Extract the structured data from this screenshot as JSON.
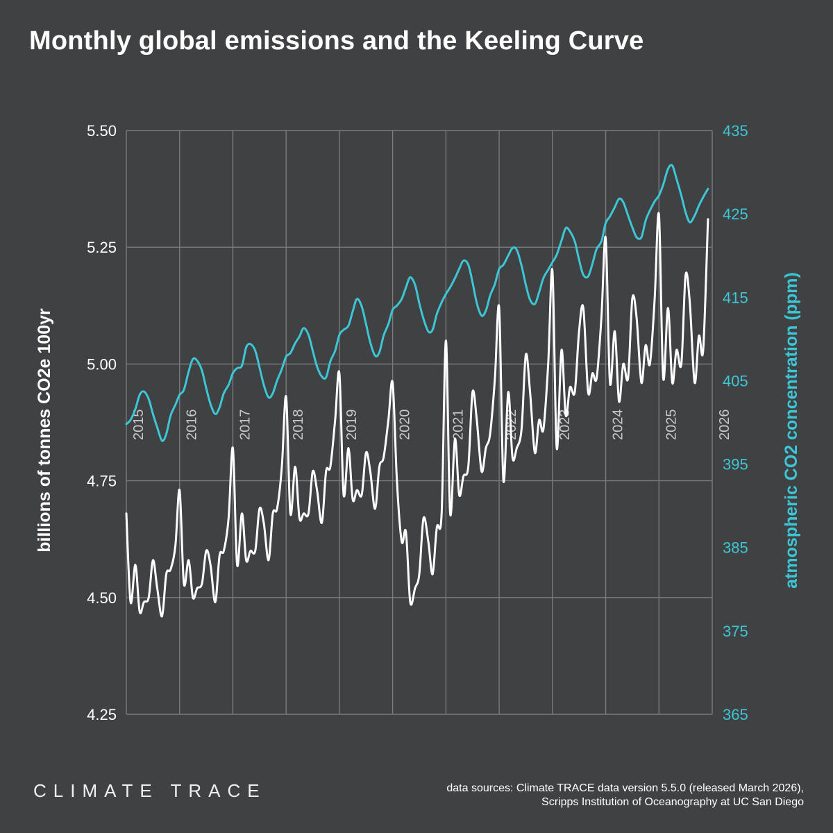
{
  "title": "Monthly global emissions and the Keeling Curve",
  "footer": {
    "logo": "CLIMATE TRACE",
    "source_line1": "data sources: Climate TRACE data version 5.5.0 (released March 2026),",
    "source_line2": "Scripps Institution of Oceanography at UC San Diego"
  },
  "colors": {
    "background": "#404143",
    "emissions": "#ffffff",
    "co2": "#3cc6d6",
    "grid": "#7a7b7d"
  },
  "chart_data": {
    "type": "line",
    "ylabel": "billions of tonnes CO2e 100yr",
    "y2label": "atmospheric CO2 concentration (ppm)",
    "xlim": [
      2015.0,
      2026.0
    ],
    "ylim": [
      4.25,
      5.5
    ],
    "y2lim": [
      365,
      435
    ],
    "yticks": [
      "4.25",
      "4.50",
      "4.75",
      "5.00",
      "5.25",
      "5.50"
    ],
    "y2ticks": [
      "365",
      "375",
      "385",
      "395",
      "405",
      "415",
      "425",
      "435"
    ],
    "xticks": [
      "2015",
      "2016",
      "2017",
      "2018",
      "2019",
      "2020",
      "2021",
      "2022",
      "2023",
      "2024",
      "2025",
      "2026"
    ],
    "grid": true,
    "series": [
      {
        "name": "",
        "axis": "left",
        "color": "#ffffff",
        "x": [
          2015.0,
          2015.08,
          2015.17,
          2015.25,
          2015.33,
          2015.42,
          2015.5,
          2015.58,
          2015.67,
          2015.75,
          2015.83,
          2015.92,
          2016.0,
          2016.08,
          2016.17,
          2016.25,
          2016.33,
          2016.42,
          2016.5,
          2016.58,
          2016.67,
          2016.75,
          2016.83,
          2016.92,
          2017.0,
          2017.08,
          2017.17,
          2017.25,
          2017.33,
          2017.42,
          2017.5,
          2017.58,
          2017.67,
          2017.75,
          2017.83,
          2017.92,
          2018.0,
          2018.08,
          2018.17,
          2018.25,
          2018.33,
          2018.42,
          2018.5,
          2018.58,
          2018.67,
          2018.75,
          2018.83,
          2018.92,
          2019.0,
          2019.08,
          2019.17,
          2019.25,
          2019.33,
          2019.42,
          2019.5,
          2019.58,
          2019.67,
          2019.75,
          2019.83,
          2019.92,
          2020.0,
          2020.08,
          2020.17,
          2020.25,
          2020.33,
          2020.42,
          2020.5,
          2020.58,
          2020.67,
          2020.75,
          2020.83,
          2020.92,
          2021.0,
          2021.08,
          2021.17,
          2021.25,
          2021.33,
          2021.42,
          2021.5,
          2021.58,
          2021.67,
          2021.75,
          2021.83,
          2021.92,
          2022.0,
          2022.08,
          2022.17,
          2022.25,
          2022.33,
          2022.42,
          2022.5,
          2022.58,
          2022.67,
          2022.75,
          2022.83,
          2022.92,
          2023.0,
          2023.08,
          2023.17,
          2023.25,
          2023.33,
          2023.42,
          2023.5,
          2023.58,
          2023.67,
          2023.75,
          2023.83,
          2023.92,
          2024.0,
          2024.08,
          2024.17,
          2024.25,
          2024.33,
          2024.42,
          2024.5,
          2024.58,
          2024.67,
          2024.75,
          2024.83,
          2024.92,
          2025.0,
          2025.08,
          2025.17,
          2025.25,
          2025.33,
          2025.42,
          2025.5,
          2025.58,
          2025.67,
          2025.75,
          2025.83,
          2025.92
        ],
        "y": [
          4.68,
          4.49,
          4.57,
          4.47,
          4.49,
          4.5,
          4.58,
          4.52,
          4.46,
          4.55,
          4.56,
          4.61,
          4.73,
          4.53,
          4.58,
          4.5,
          4.52,
          4.53,
          4.6,
          4.57,
          4.49,
          4.59,
          4.6,
          4.67,
          4.82,
          4.57,
          4.68,
          4.58,
          4.6,
          4.6,
          4.69,
          4.66,
          4.58,
          4.68,
          4.69,
          4.78,
          4.93,
          4.68,
          4.78,
          4.67,
          4.68,
          4.68,
          4.77,
          4.73,
          4.66,
          4.77,
          4.78,
          4.88,
          4.98,
          4.72,
          4.82,
          4.71,
          4.73,
          4.72,
          4.81,
          4.77,
          4.69,
          4.78,
          4.8,
          4.88,
          4.96,
          4.75,
          4.62,
          4.64,
          4.49,
          4.52,
          4.55,
          4.67,
          4.62,
          4.55,
          4.65,
          4.68,
          5.05,
          4.68,
          4.84,
          4.72,
          4.76,
          4.78,
          4.94,
          4.88,
          4.77,
          4.82,
          4.85,
          4.97,
          5.12,
          4.75,
          4.94,
          4.8,
          4.82,
          4.86,
          5.02,
          4.94,
          4.81,
          4.88,
          4.86,
          5.0,
          5.2,
          4.82,
          5.03,
          4.89,
          4.95,
          4.94,
          5.07,
          5.12,
          4.94,
          4.98,
          4.97,
          5.1,
          5.27,
          4.96,
          5.07,
          4.92,
          5.0,
          4.97,
          5.14,
          5.1,
          4.96,
          5.04,
          5.0,
          5.14,
          5.32,
          4.97,
          5.12,
          4.96,
          5.03,
          5.0,
          5.19,
          5.13,
          4.96,
          5.06,
          5.03,
          5.31
        ]
      },
      {
        "name": "",
        "axis": "right",
        "color": "#3cc6d6",
        "x": [
          2015.0,
          2015.08,
          2015.17,
          2015.25,
          2015.33,
          2015.42,
          2015.5,
          2015.58,
          2015.67,
          2015.75,
          2015.83,
          2015.92,
          2016.0,
          2016.08,
          2016.17,
          2016.25,
          2016.33,
          2016.42,
          2016.5,
          2016.58,
          2016.67,
          2016.75,
          2016.83,
          2016.92,
          2017.0,
          2017.08,
          2017.17,
          2017.25,
          2017.33,
          2017.42,
          2017.5,
          2017.58,
          2017.67,
          2017.75,
          2017.83,
          2017.92,
          2018.0,
          2018.08,
          2018.17,
          2018.25,
          2018.33,
          2018.42,
          2018.5,
          2018.58,
          2018.67,
          2018.75,
          2018.83,
          2018.92,
          2019.0,
          2019.08,
          2019.17,
          2019.25,
          2019.33,
          2019.42,
          2019.5,
          2019.58,
          2019.67,
          2019.75,
          2019.83,
          2019.92,
          2020.0,
          2020.08,
          2020.17,
          2020.25,
          2020.33,
          2020.42,
          2020.5,
          2020.58,
          2020.67,
          2020.75,
          2020.83,
          2020.92,
          2021.0,
          2021.08,
          2021.17,
          2021.25,
          2021.33,
          2021.42,
          2021.5,
          2021.58,
          2021.67,
          2021.75,
          2021.83,
          2021.92,
          2022.0,
          2022.08,
          2022.17,
          2022.25,
          2022.33,
          2022.42,
          2022.5,
          2022.58,
          2022.67,
          2022.75,
          2022.83,
          2022.92,
          2023.0,
          2023.08,
          2023.17,
          2023.25,
          2023.33,
          2023.42,
          2023.5,
          2023.58,
          2023.67,
          2023.75,
          2023.83,
          2023.92,
          2024.0,
          2024.08,
          2024.17,
          2024.25,
          2024.33,
          2024.42,
          2024.5,
          2024.58,
          2024.67,
          2024.75,
          2024.83,
          2024.92,
          2025.0,
          2025.08,
          2025.17,
          2025.25,
          2025.33,
          2025.42,
          2025.5,
          2025.58,
          2025.67,
          2025.75,
          2025.83,
          2025.92
        ],
        "y": [
          399.8,
          400.3,
          401.6,
          403.3,
          403.7,
          402.8,
          401.0,
          399.4,
          397.8,
          398.6,
          400.8,
          402.1,
          403.3,
          403.9,
          406.1,
          407.6,
          407.4,
          406.2,
          404.1,
          402.2,
          401.0,
          401.8,
          403.5,
          404.5,
          405.9,
          406.5,
          406.8,
          409.0,
          409.4,
          408.6,
          406.6,
          404.5,
          403.0,
          403.5,
          405.0,
          406.4,
          407.9,
          408.3,
          409.5,
          410.3,
          411.3,
          410.5,
          408.6,
          406.7,
          405.5,
          405.4,
          407.3,
          408.6,
          410.5,
          411.1,
          411.6,
          413.3,
          414.8,
          413.9,
          411.8,
          409.6,
          408.0,
          408.4,
          410.4,
          411.8,
          413.5,
          414.0,
          414.8,
          416.2,
          417.4,
          416.5,
          414.3,
          412.4,
          410.9,
          411.1,
          413.0,
          414.4,
          415.4,
          416.2,
          417.3,
          418.4,
          419.4,
          418.9,
          416.8,
          414.3,
          412.8,
          413.4,
          415.2,
          416.6,
          418.4,
          418.9,
          420.0,
          420.9,
          420.7,
          418.8,
          416.5,
          414.7,
          414.2,
          415.6,
          417.3,
          418.3,
          419.2,
          420.1,
          421.8,
          423.3,
          422.9,
          421.7,
          419.5,
          417.7,
          417.5,
          419.0,
          420.8,
          421.7,
          423.9,
          424.7,
          425.8,
          426.8,
          426.4,
          424.8,
          423.4,
          422.2,
          422.2,
          424.2,
          425.4,
          426.5,
          427.2,
          428.5,
          430.4,
          430.8,
          429.2,
          427.2,
          425.2,
          424.0,
          424.8,
          426.0,
          427.0,
          428.0
        ]
      }
    ]
  }
}
